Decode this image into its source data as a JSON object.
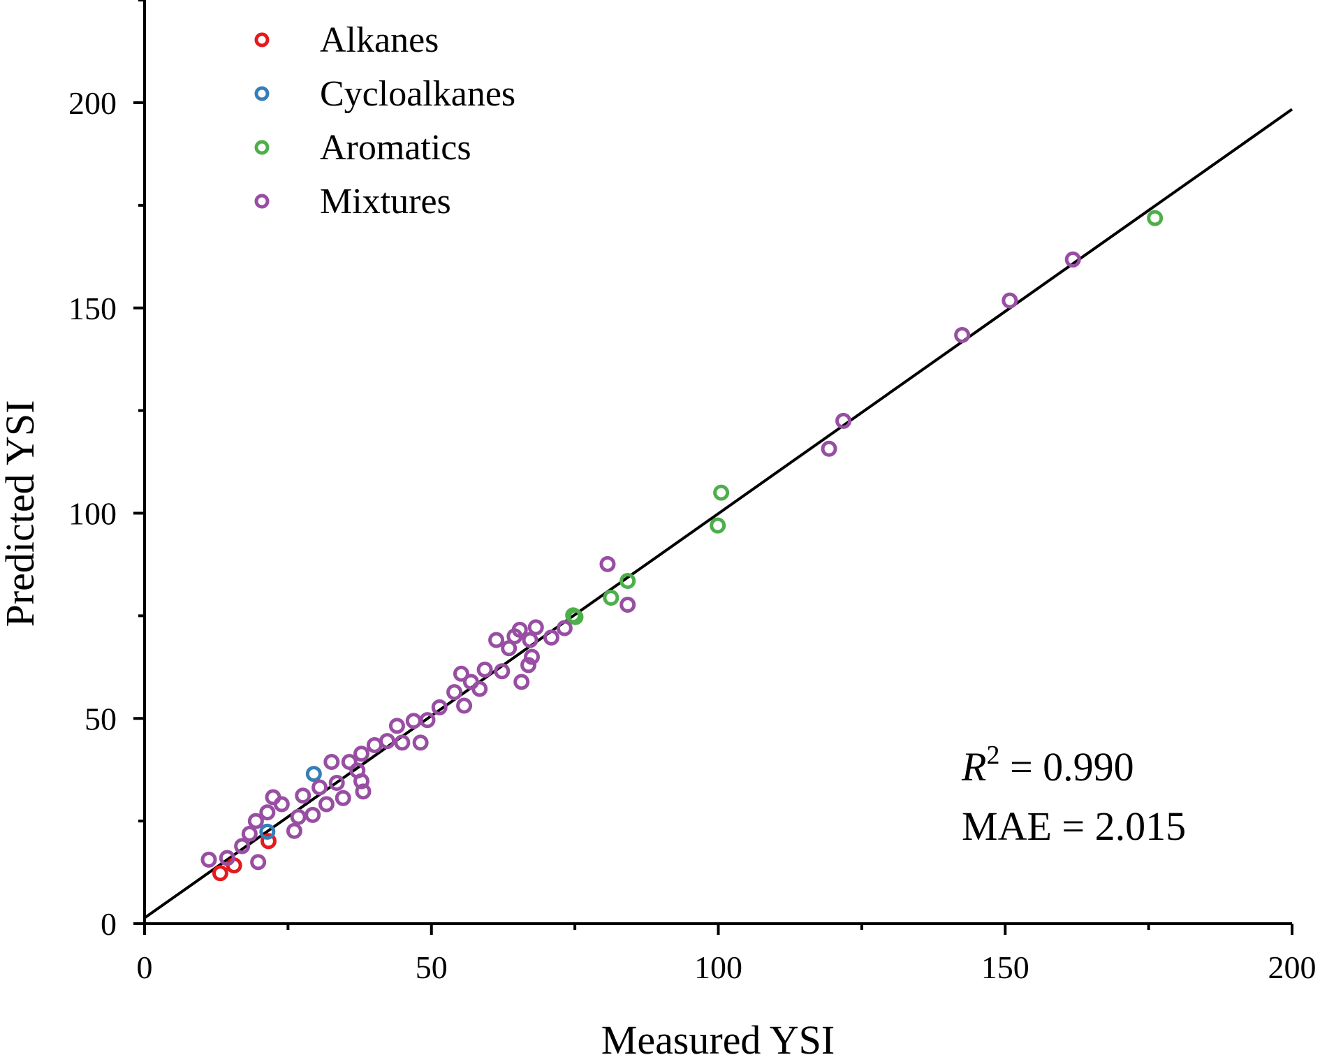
{
  "chart_data": {
    "type": "scatter",
    "title": "",
    "xlabel": "Measured YSI",
    "ylabel": "Predicted YSI",
    "xlim": [
      0,
      200
    ],
    "ylim": [
      0,
      225
    ],
    "xticks": [
      0,
      50,
      100,
      150,
      200
    ],
    "yticks": [
      0,
      50,
      100,
      150,
      200
    ],
    "grid": false,
    "legend_position": "top-left",
    "fit_line": {
      "x": [
        0,
        200
      ],
      "y": [
        1.4,
        198.4
      ],
      "color": "#000000"
    },
    "annotations": {
      "r2_symbol": "R",
      "r2_sup": "2",
      "r2_value": " = 0.990",
      "mae": "MAE = 2.015"
    },
    "series": [
      {
        "name": "Alkanes",
        "color": "#e41a1c",
        "points": [
          [
            13.2,
            12.3
          ],
          [
            15.6,
            14.2
          ],
          [
            21.6,
            20.1
          ]
        ]
      },
      {
        "name": "Cycloalkanes",
        "color": "#377eb8",
        "points": [
          [
            21.4,
            22.4
          ],
          [
            29.5,
            36.5
          ]
        ]
      },
      {
        "name": "Aromatics",
        "color": "#4daf4a",
        "points": [
          [
            74.7,
            75.1
          ],
          [
            75.1,
            74.7
          ],
          [
            81.3,
            79.4
          ],
          [
            84.2,
            83.5
          ],
          [
            99.9,
            97.0
          ],
          [
            100.5,
            105.0
          ],
          [
            176.1,
            171.9
          ]
        ]
      },
      {
        "name": "Mixtures",
        "color": "#984ea3",
        "points": [
          [
            11.2,
            15.6
          ],
          [
            14.4,
            16
          ],
          [
            17,
            18.9
          ],
          [
            19.8,
            15
          ],
          [
            18.3,
            21.9
          ],
          [
            19.4,
            25
          ],
          [
            21.4,
            27.1
          ],
          [
            22.4,
            30.8
          ],
          [
            23.9,
            29.1
          ],
          [
            26.1,
            22.6
          ],
          [
            26.8,
            26
          ],
          [
            27.6,
            31.2
          ],
          [
            29.3,
            26.5
          ],
          [
            30.5,
            33.2
          ],
          [
            31.7,
            29.1
          ],
          [
            32.6,
            39.4
          ],
          [
            33.5,
            34.3
          ],
          [
            34.6,
            30.6
          ],
          [
            35.7,
            39.4
          ],
          [
            37.1,
            37.3
          ],
          [
            37.8,
            41.4
          ],
          [
            38.1,
            32.2
          ],
          [
            37.8,
            34.7
          ],
          [
            40.1,
            43.5
          ],
          [
            42.3,
            44.5
          ],
          [
            44,
            48.2
          ],
          [
            44.9,
            44.1
          ],
          [
            46.9,
            49.4
          ],
          [
            48.1,
            44.1
          ],
          [
            49.3,
            49.6
          ],
          [
            51.4,
            52.7
          ],
          [
            54,
            56.4
          ],
          [
            55.2,
            60.9
          ],
          [
            55.7,
            53.1
          ],
          [
            56.9,
            58.9
          ],
          [
            58.4,
            57.2
          ],
          [
            59.3,
            61.9
          ],
          [
            61.3,
            69.1
          ],
          [
            62.3,
            61.5
          ],
          [
            63.5,
            67.1
          ],
          [
            64.5,
            70
          ],
          [
            65.4,
            71.6
          ],
          [
            65.7,
            58.9
          ],
          [
            66.9,
            63
          ],
          [
            67.5,
            65
          ],
          [
            67.2,
            69.1
          ],
          [
            68.2,
            72.2
          ],
          [
            70.9,
            69.7
          ],
          [
            73.2,
            72
          ],
          [
            80.7,
            87.6
          ],
          [
            84.2,
            77.7
          ],
          [
            119.3,
            115.7
          ],
          [
            121.8,
            122.5
          ],
          [
            142.5,
            143.4
          ],
          [
            150.8,
            151.8
          ],
          [
            161.8,
            161.8
          ]
        ]
      }
    ]
  }
}
